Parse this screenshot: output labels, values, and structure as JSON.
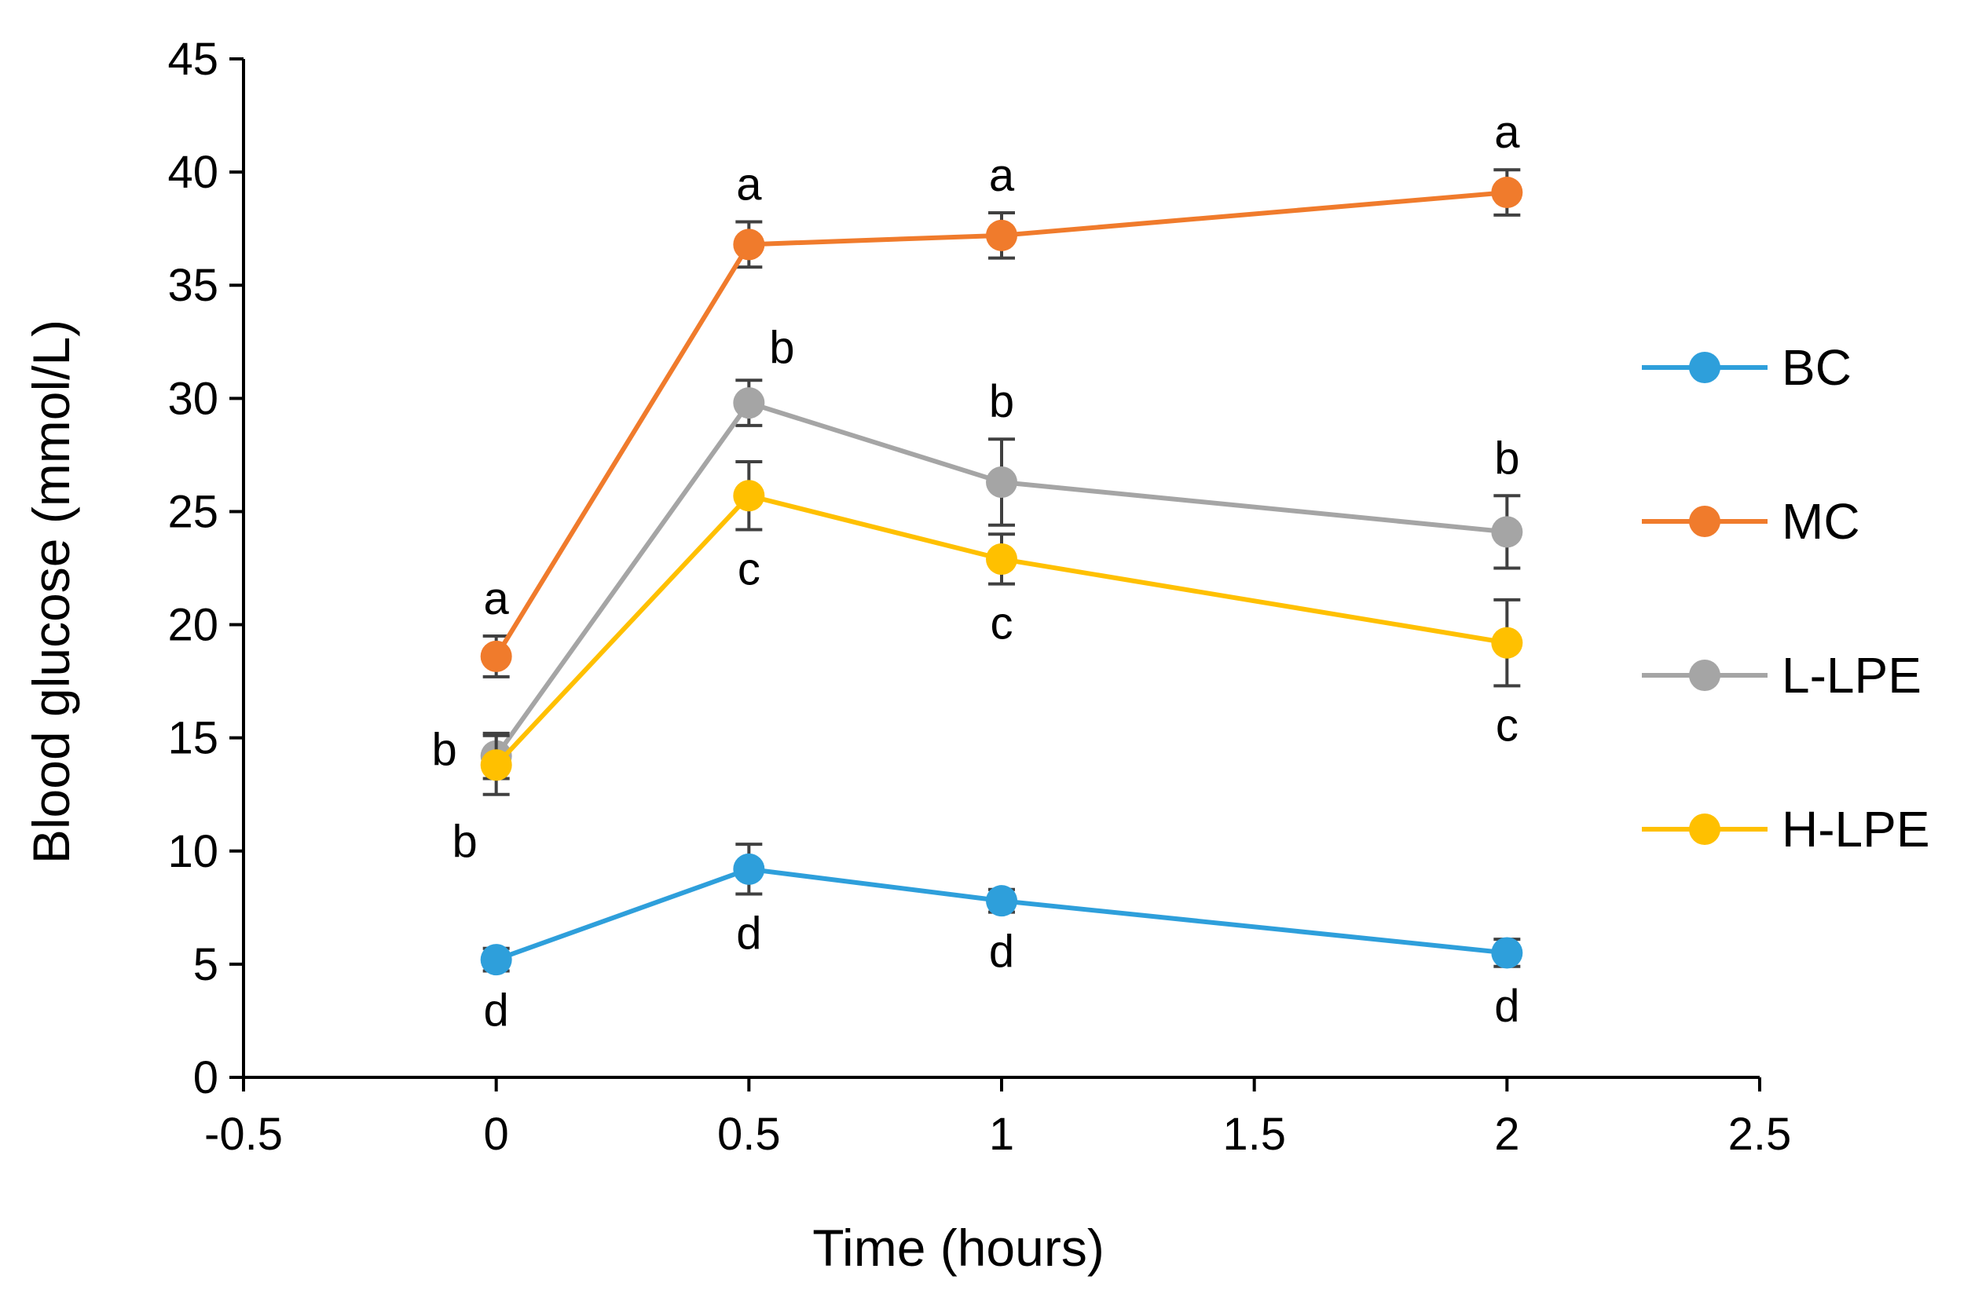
{
  "chart_data": {
    "type": "line",
    "title": "",
    "xlabel": "Time (hours)",
    "ylabel": "Blood glucose (mmol/L)",
    "xlim": [
      -0.5,
      2.5
    ],
    "ylim": [
      0,
      45
    ],
    "xticks": [
      -0.5,
      0,
      0.5,
      1,
      1.5,
      2,
      2.5
    ],
    "xtick_labels": [
      "-0.5",
      "0",
      "0.5",
      "1",
      "1.5",
      "2",
      "2.5"
    ],
    "yticks": [
      0,
      5,
      10,
      15,
      20,
      25,
      30,
      35,
      40,
      45
    ],
    "ytick_labels": [
      "0",
      "5",
      "10",
      "15",
      "20",
      "25",
      "30",
      "35",
      "40",
      "45"
    ],
    "grid": false,
    "legend_position": "right",
    "x": [
      0,
      0.5,
      1,
      2
    ],
    "series": [
      {
        "name": "BC",
        "color": "#2E9FDB",
        "values": [
          5.2,
          9.2,
          7.8,
          5.5
        ],
        "errors": [
          0.5,
          1.1,
          0.5,
          0.6
        ],
        "letters": [
          "d",
          "d",
          "d",
          "d"
        ],
        "letter_positions": [
          "below",
          "below",
          "below",
          "below"
        ]
      },
      {
        "name": "MC",
        "color": "#F07B2C",
        "values": [
          18.6,
          36.8,
          37.2,
          39.1
        ],
        "errors": [
          0.9,
          1.0,
          1.0,
          1.0
        ],
        "letters": [
          "a",
          "a",
          "a",
          "a"
        ],
        "letter_positions": [
          "above",
          "above",
          "above",
          "above"
        ]
      },
      {
        "name": "L-LPE",
        "color": "#A5A5A5",
        "values": [
          14.2,
          29.8,
          26.3,
          24.1
        ],
        "errors": [
          1.0,
          1.0,
          1.9,
          1.6
        ],
        "letters": [
          "b",
          "b",
          "b",
          "b"
        ],
        "letter_positions": [
          "left-above",
          "right-above",
          "above",
          "above"
        ]
      },
      {
        "name": "H-LPE",
        "color": "#FFC000",
        "values": [
          13.8,
          25.7,
          22.9,
          19.2
        ],
        "errors": [
          1.3,
          1.5,
          1.1,
          1.9
        ],
        "letters": [
          "b",
          "c",
          "c",
          "c"
        ],
        "letter_positions": [
          "left-below",
          "below",
          "below",
          "below"
        ]
      }
    ]
  }
}
